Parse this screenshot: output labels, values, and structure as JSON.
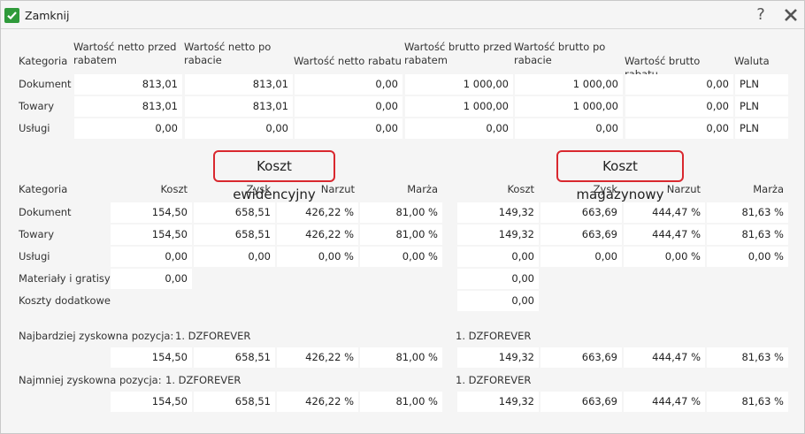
{
  "titlebar": {
    "close_label": "Zamknij",
    "help_symbol": "?"
  },
  "top_table": {
    "headers": {
      "kategoria": "Kategoria",
      "netto_przed": "Wartość netto przed rabatem",
      "netto_po": "Wartość netto po rabacie",
      "netto_rabatu": "Wartość netto rabatu",
      "brutto_przed": "Wartość brutto przed rabatem",
      "brutto_po": "Wartość brutto po rabacie",
      "brutto_rabatu": "Wartość brutto rabatu",
      "waluta": "Waluta"
    },
    "rows": [
      {
        "label": "Dokument",
        "netto_przed": "813,01",
        "netto_po": "813,01",
        "netto_rabatu": "0,00",
        "brutto_przed": "1 000,00",
        "brutto_po": "1 000,00",
        "brutto_rabatu": "0,00",
        "waluta": "PLN"
      },
      {
        "label": "Towary",
        "netto_przed": "813,01",
        "netto_po": "813,01",
        "netto_rabatu": "0,00",
        "brutto_przed": "1 000,00",
        "brutto_po": "1 000,00",
        "brutto_rabatu": "0,00",
        "waluta": "PLN"
      },
      {
        "label": "Usługi",
        "netto_przed": "0,00",
        "netto_po": "0,00",
        "netto_rabatu": "0,00",
        "brutto_przed": "0,00",
        "brutto_po": "0,00",
        "brutto_rabatu": "0,00",
        "waluta": "PLN"
      }
    ]
  },
  "cost": {
    "ewid_title": "Koszt ewidencyjny",
    "mag_title": "Koszt magazynowy",
    "headers": {
      "kategoria": "Kategoria",
      "koszt": "Koszt",
      "zysk": "Zysk",
      "narzut": "Narzut",
      "marza": "Marża"
    },
    "rows": [
      {
        "label": "Dokument",
        "e_koszt": "154,50",
        "e_zysk": "658,51",
        "e_narzut": "426,22 %",
        "e_marza": "81,00 %",
        "m_koszt": "149,32",
        "m_zysk": "663,69",
        "m_narzut": "444,47 %",
        "m_marza": "81,63 %"
      },
      {
        "label": "Towary",
        "e_koszt": "154,50",
        "e_zysk": "658,51",
        "e_narzut": "426,22 %",
        "e_marza": "81,00 %",
        "m_koszt": "149,32",
        "m_zysk": "663,69",
        "m_narzut": "444,47 %",
        "m_marza": "81,63 %"
      },
      {
        "label": "Usługi",
        "e_koszt": "0,00",
        "e_zysk": "0,00",
        "e_narzut": "0,00 %",
        "e_marza": "0,00 %",
        "m_koszt": "0,00",
        "m_zysk": "0,00",
        "m_narzut": "0,00 %",
        "m_marza": "0,00 %"
      }
    ],
    "materialy": {
      "label": "Materiały i gratisy",
      "e_koszt": "0,00",
      "m_koszt": "0,00"
    },
    "dodatkowe": {
      "label": "Koszty dodatkowe",
      "m_koszt": "0,00"
    }
  },
  "best": {
    "label": "Najbardziej zyskowna pozycja:",
    "e_item": "1. DZFOREVER",
    "m_item": "1. DZFOREVER",
    "e_koszt": "154,50",
    "e_zysk": "658,51",
    "e_narzut": "426,22 %",
    "e_marza": "81,00 %",
    "m_koszt": "149,32",
    "m_zysk": "663,69",
    "m_narzut": "444,47 %",
    "m_marza": "81,63 %"
  },
  "worst": {
    "label": "Najmniej zyskowna pozycja:",
    "e_item": "1. DZFOREVER",
    "m_item": "1. DZFOREVER",
    "e_koszt": "154,50",
    "e_zysk": "658,51",
    "e_narzut": "426,22 %",
    "e_marza": "81,00 %",
    "m_koszt": "149,32",
    "m_zysk": "663,69",
    "m_narzut": "444,47 %",
    "m_marza": "81,63 %"
  }
}
